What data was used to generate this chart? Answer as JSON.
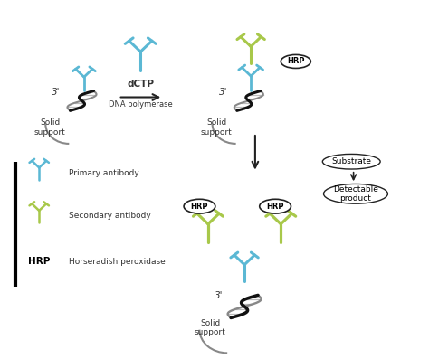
{
  "background_color": "#ffffff",
  "blue_color": "#5bb8d4",
  "green_color": "#a8c84a",
  "dark": "#222222",
  "black": "#000000",
  "dna_dark": "#111111",
  "dna_mid": "#888888",
  "dna_light": "#bbbbbb",
  "tc": "#333333",
  "hrp_label": "HRP",
  "dctp_label": "dCTP",
  "dna_poly_label": "DNA polymerase",
  "solid_support_label": "Solid\nsupport",
  "prime3_label": "3'",
  "substrate_label": "Substrate",
  "detectable_label": "Detectable\nproduct",
  "legend_primary": "Primary antibody",
  "legend_secondary": "Secondary antibody",
  "legend_hrp": "Horseradish peroxidase"
}
